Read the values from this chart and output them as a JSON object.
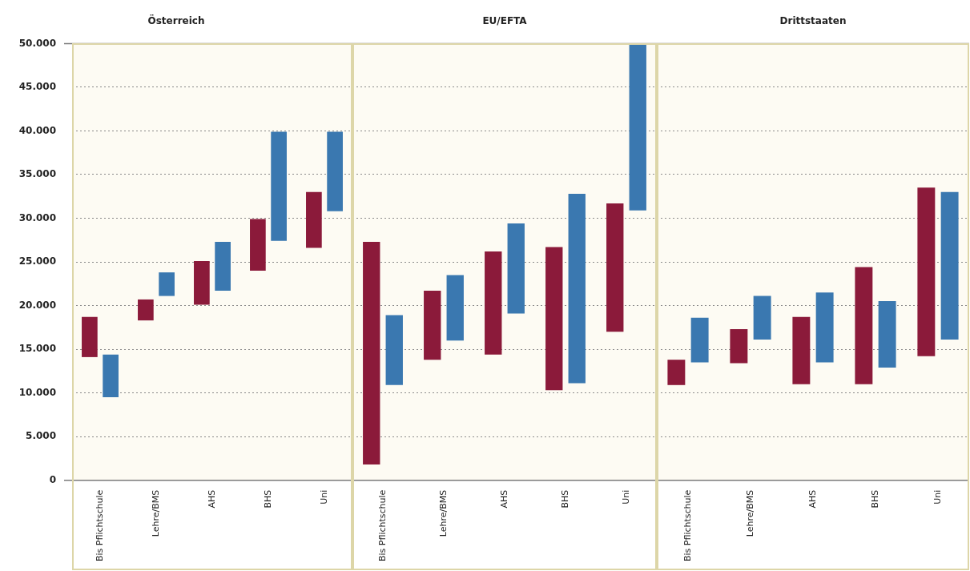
{
  "chart_data": [
    {
      "type": "bar",
      "title": "Österreich",
      "categories": [
        "Bis Pflichtschule",
        "Lehre/BMS",
        "AHS",
        "BHS",
        "Uni"
      ],
      "series": [
        {
          "color": "#8b1a3a",
          "base": [
            14100,
            18300,
            20100,
            24000,
            26600
          ],
          "values": [
            4600,
            2400,
            5000,
            5900,
            6400
          ]
        },
        {
          "color": "#3a78b0",
          "base": [
            9500,
            21100,
            21700,
            27400,
            30800
          ],
          "values": [
            4900,
            2700,
            5600,
            12500,
            9100
          ]
        }
      ],
      "ylim": [
        0,
        50000
      ],
      "yticks": [
        0,
        {
          "value": 5000,
          "label": "5.000"
        },
        {
          "value": 10000,
          "label": "10.000"
        },
        {
          "value": 15000,
          "label": "15.000"
        },
        {
          "value": 20000,
          "label": "20.000"
        },
        {
          "value": 25000,
          "label": "25.000"
        },
        {
          "value": 30000,
          "label": "30.000"
        },
        {
          "value": 35000,
          "label": "35.000"
        },
        {
          "value": 40000,
          "label": "40.000"
        },
        {
          "value": 45000,
          "label": "45.000"
        },
        {
          "value": 50000,
          "label": "50.000"
        }
      ],
      "grid": "y"
    },
    {
      "type": "bar",
      "title": "EU/EFTA",
      "categories": [
        "Bis Pflichtschule",
        "Lehre/BMS",
        "AHS",
        "BHS",
        "Uni"
      ],
      "series": [
        {
          "color": "#8b1a3a",
          "base": [
            1800,
            13800,
            14400,
            10300,
            17000
          ],
          "values": [
            25500,
            7900,
            11800,
            16400,
            14700
          ]
        },
        {
          "color": "#3a78b0",
          "base": [
            10900,
            16000,
            19100,
            11100,
            30900
          ],
          "values": [
            8000,
            7500,
            10300,
            21700,
            19100
          ]
        }
      ],
      "ylim": [
        0,
        50000
      ],
      "yticks": [
        {
          "value": 0,
          "label": null
        },
        {
          "value": 5000,
          "label": null
        },
        {
          "value": 10000,
          "label": null
        },
        {
          "value": 15000,
          "label": null
        },
        {
          "value": 20000,
          "label": null
        },
        {
          "value": 25000,
          "label": null
        },
        {
          "value": 30000,
          "label": null
        },
        {
          "value": 35000,
          "label": null
        },
        {
          "value": 40000,
          "label": null
        },
        {
          "value": 45000,
          "label": null
        },
        {
          "value": 50000,
          "label": null
        }
      ],
      "grid": "y",
      "tick_labels": "x"
    },
    {
      "type": "bar",
      "title": "Drittstaaten",
      "categories": [
        "Bis Pflichtschule",
        "Lehre/BMS",
        "AHS",
        "BHS",
        "Uni"
      ],
      "series": [
        {
          "color": "#8b1a3a",
          "base": [
            10900,
            13400,
            11000,
            11000,
            14200
          ],
          "values": [
            2900,
            3900,
            7700,
            13400,
            19300
          ]
        },
        {
          "color": "#3a78b0",
          "base": [
            13500,
            16100,
            13500,
            12900,
            16100
          ],
          "values": [
            5100,
            5000,
            8000,
            7600,
            16900
          ]
        }
      ],
      "ylim": [
        0,
        50000
      ],
      "yticks": [
        {
          "value": 0,
          "label": null
        },
        {
          "value": 5000,
          "label": null
        },
        {
          "value": 10000,
          "label": null
        },
        {
          "value": 15000,
          "label": null
        },
        {
          "value": 20000,
          "label": null
        },
        {
          "value": 25000,
          "label": null
        },
        {
          "value": 30000,
          "label": null
        },
        {
          "value": 35000,
          "label": null
        },
        {
          "value": 40000,
          "label": null
        },
        {
          "value": 45000,
          "label": null
        },
        {
          "value": 50000,
          "label": null
        }
      ],
      "grid": "y",
      "tick_labels": "x"
    }
  ]
}
